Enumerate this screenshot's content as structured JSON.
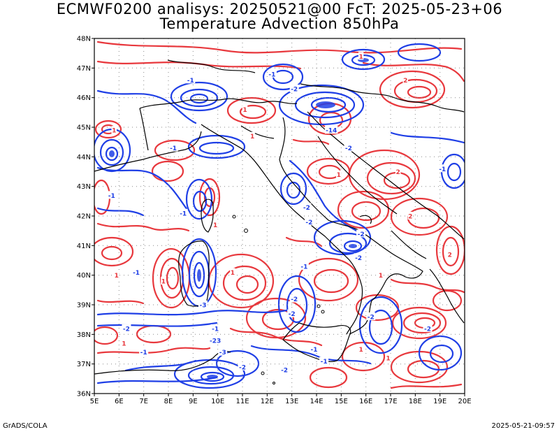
{
  "header": {
    "title_line1": "ECMWF0200 analisys: 20250521@00 FcT: 2025-05-23+06",
    "title_line2": "Temperature Advection 850hPa"
  },
  "footer": {
    "left": "GrADS/COLA",
    "right": "2025-05-21-09:57"
  },
  "map": {
    "lon_range": [
      5,
      20
    ],
    "lat_range": [
      36,
      48
    ],
    "lon_labels": [
      "5E",
      "6E",
      "7E",
      "8E",
      "9E",
      "10E",
      "11E",
      "12E",
      "13E",
      "14E",
      "15E",
      "16E",
      "17E",
      "18E",
      "19E",
      "20E"
    ],
    "lat_labels": [
      "36N",
      "37N",
      "38N",
      "39N",
      "40N",
      "41N",
      "42N",
      "43N",
      "44N",
      "45N",
      "46N",
      "47N",
      "48N"
    ],
    "colors": {
      "warm_advection": "#e8383d",
      "cold_advection": "#1f3fe6",
      "coastline": "#000000",
      "grid": "#8a8a8a"
    },
    "contour_labels": [
      {
        "text": "-1",
        "lon": 8.9,
        "lat": 46.6,
        "sign": "neg"
      },
      {
        "text": "-2",
        "lon": 13.1,
        "lat": 46.3,
        "sign": "neg"
      },
      {
        "text": "-1",
        "lon": 12.2,
        "lat": 46.8,
        "sign": "neg"
      },
      {
        "text": "1",
        "lon": 15.8,
        "lat": 47.4,
        "sign": "pos"
      },
      {
        "text": "2",
        "lon": 17.6,
        "lat": 46.6,
        "sign": "pos"
      },
      {
        "text": "-14",
        "lon": 14.6,
        "lat": 44.9,
        "sign": "neg"
      },
      {
        "text": "-2",
        "lon": 15.3,
        "lat": 44.3,
        "sign": "neg"
      },
      {
        "text": "1",
        "lon": 11.1,
        "lat": 45.6,
        "sign": "pos"
      },
      {
        "text": "-1",
        "lon": 8.2,
        "lat": 44.3,
        "sign": "neg"
      },
      {
        "text": "1",
        "lon": 5.8,
        "lat": 44.9,
        "sign": "pos"
      },
      {
        "text": "-1",
        "lon": 5.7,
        "lat": 42.7,
        "sign": "neg"
      },
      {
        "text": "1",
        "lon": 11.4,
        "lat": 44.7,
        "sign": "pos"
      },
      {
        "text": "-2",
        "lon": 13.6,
        "lat": 42.3,
        "sign": "neg"
      },
      {
        "text": "-2",
        "lon": 13.7,
        "lat": 41.8,
        "sign": "neg"
      },
      {
        "text": "1",
        "lon": 14.9,
        "lat": 43.4,
        "sign": "pos"
      },
      {
        "text": "2",
        "lon": 17.3,
        "lat": 43.5,
        "sign": "pos"
      },
      {
        "text": "-1",
        "lon": 19.1,
        "lat": 43.6,
        "sign": "neg"
      },
      {
        "text": "-1",
        "lon": 8.6,
        "lat": 42.1,
        "sign": "neg"
      },
      {
        "text": "1",
        "lon": 9.9,
        "lat": 41.7,
        "sign": "pos"
      },
      {
        "text": "-2",
        "lon": 15.8,
        "lat": 41.4,
        "sign": "neg"
      },
      {
        "text": "1",
        "lon": 5.9,
        "lat": 40.0,
        "sign": "pos"
      },
      {
        "text": "-1",
        "lon": 6.7,
        "lat": 40.1,
        "sign": "neg"
      },
      {
        "text": "1",
        "lon": 7.8,
        "lat": 39.8,
        "sign": "pos"
      },
      {
        "text": "1",
        "lon": 10.6,
        "lat": 40.1,
        "sign": "pos"
      },
      {
        "text": "-2",
        "lon": 13.1,
        "lat": 39.2,
        "sign": "neg"
      },
      {
        "text": "-3",
        "lon": 9.4,
        "lat": 39.0,
        "sign": "neg"
      },
      {
        "text": "-2",
        "lon": 13.0,
        "lat": 38.7,
        "sign": "neg"
      },
      {
        "text": "-1",
        "lon": 9.9,
        "lat": 38.2,
        "sign": "neg"
      },
      {
        "text": "-23",
        "lon": 9.9,
        "lat": 37.8,
        "sign": "neg"
      },
      {
        "text": "-3",
        "lon": 10.2,
        "lat": 37.4,
        "sign": "neg"
      },
      {
        "text": "-2",
        "lon": 6.3,
        "lat": 38.2,
        "sign": "neg"
      },
      {
        "text": "-1",
        "lon": 7.0,
        "lat": 37.4,
        "sign": "neg"
      },
      {
        "text": "1",
        "lon": 6.2,
        "lat": 37.7,
        "sign": "pos"
      },
      {
        "text": "-2",
        "lon": 11.0,
        "lat": 36.9,
        "sign": "neg"
      },
      {
        "text": "-1",
        "lon": 13.9,
        "lat": 37.5,
        "sign": "neg"
      },
      {
        "text": "-2",
        "lon": 12.7,
        "lat": 36.8,
        "sign": "neg"
      },
      {
        "text": "-1",
        "lon": 14.3,
        "lat": 37.1,
        "sign": "neg"
      },
      {
        "text": "1",
        "lon": 15.8,
        "lat": 37.5,
        "sign": "pos"
      },
      {
        "text": "1",
        "lon": 16.9,
        "lat": 37.2,
        "sign": "pos"
      },
      {
        "text": "-2",
        "lon": 18.5,
        "lat": 38.2,
        "sign": "neg"
      },
      {
        "text": "-2",
        "lon": 16.2,
        "lat": 38.6,
        "sign": "neg"
      },
      {
        "text": "1",
        "lon": 16.6,
        "lat": 40.0,
        "sign": "pos"
      },
      {
        "text": "2",
        "lon": 19.4,
        "lat": 40.7,
        "sign": "pos"
      },
      {
        "text": "-1",
        "lon": 13.5,
        "lat": 40.3,
        "sign": "neg"
      },
      {
        "text": "-2",
        "lon": 15.7,
        "lat": 40.6,
        "sign": "neg"
      },
      {
        "text": "2",
        "lon": 17.8,
        "lat": 42.0,
        "sign": "pos"
      }
    ]
  }
}
